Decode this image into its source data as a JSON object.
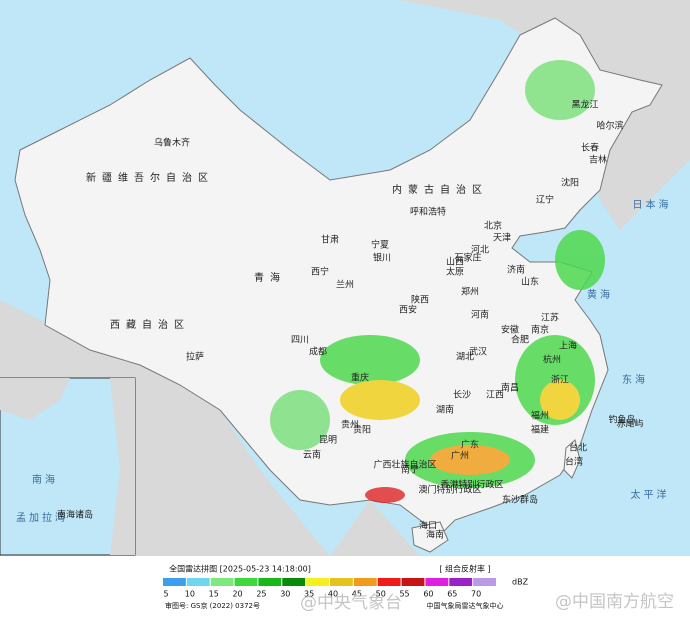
{
  "header": {
    "title": "全国雷达拼图 [2025-05-23 14:18:00]",
    "product": "[ 组合反射率 ]"
  },
  "legend": {
    "unit": "dBZ",
    "levels": [
      {
        "value": 5,
        "color": "#3d9ef0"
      },
      {
        "value": 10,
        "color": "#6fd6f0"
      },
      {
        "value": 15,
        "color": "#7ee87e"
      },
      {
        "value": 20,
        "color": "#3ed83e"
      },
      {
        "value": 25,
        "color": "#18b818"
      },
      {
        "value": 30,
        "color": "#0a8a0a"
      },
      {
        "value": 35,
        "color": "#f5f020"
      },
      {
        "value": 40,
        "color": "#e6c21e"
      },
      {
        "value": 45,
        "color": "#f29a1c"
      },
      {
        "value": 50,
        "color": "#f01c1c"
      },
      {
        "value": 55,
        "color": "#c81414"
      },
      {
        "value": 60,
        "color": "#e020e0"
      },
      {
        "value": 65,
        "color": "#9a20c8"
      },
      {
        "value": 70,
        "color": "#b89ae6"
      }
    ]
  },
  "footer": {
    "approval": "审图号: GS京 (2022) 0372号",
    "source": "中国气象局雷达气象中心"
  },
  "watermarks": [
    "@中央气象台",
    "@中国南方航空"
  ],
  "map_labels": [
    "新疆维吾尔自治区",
    "乌鲁木齐",
    "西藏自治区",
    "拉萨",
    "青海",
    "西宁",
    "甘肃",
    "兰州",
    "内蒙古自治区",
    "呼和浩特",
    "宁夏",
    "银川",
    "陕西",
    "西安",
    "山西",
    "太原",
    "河北",
    "石家庄",
    "北京",
    "天津",
    "山东",
    "济南",
    "河南",
    "郑州",
    "四川",
    "成都",
    "重庆",
    "贵州",
    "贵阳",
    "云南",
    "昆明",
    "湖北",
    "武汉",
    "湖南",
    "长沙",
    "江西",
    "南昌",
    "安徽",
    "合肥",
    "江苏",
    "南京",
    "上海",
    "浙江",
    "杭州",
    "福建",
    "福州",
    "广东",
    "广州",
    "广西壮族自治区",
    "南宁",
    "海南",
    "海口",
    "香港特别行政区",
    "澳门特别行政区",
    "台湾",
    "台北",
    "辽宁",
    "沈阳",
    "吉林",
    "长春",
    "黑龙江",
    "哈尔滨",
    "日本海",
    "黄海",
    "东海",
    "太平洋",
    "南海",
    "孟加拉湾",
    "钓鱼岛",
    "赤尾屿",
    "东沙群岛",
    "南海诸岛"
  ]
}
